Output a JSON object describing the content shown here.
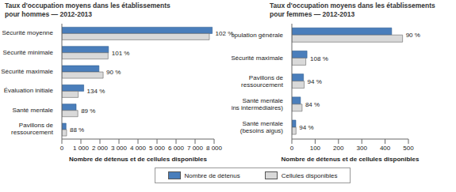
{
  "chart_data": [
    {
      "type": "bar",
      "orientation": "horizontal",
      "title": "Taux d'occupation moyens dans les établissements pour hommes — 2012-2013",
      "x_label": "Nombre de détenus et de cellules disponibles",
      "categories": [
        "Sécurité moyenne",
        "Sécurité minimale",
        "Sécurité maximale",
        "Évaluation initiale",
        "Santé mentale",
        "Pavillons de ressourcement"
      ],
      "series": [
        {
          "name": "Nombre de détenus",
          "color": "#4a7ebb",
          "values": [
            7900,
            2450,
            1950,
            1150,
            750,
            220
          ]
        },
        {
          "name": "Cellules disponibles",
          "color": "#d9d9d9",
          "values": [
            7750,
            2430,
            2170,
            860,
            840,
            250
          ]
        }
      ],
      "annotations": [
        "102 %",
        "101 %",
        "90 %",
        "134 %",
        "89 %",
        "88 %"
      ],
      "xlim": [
        0,
        8000
      ],
      "xticks": [
        0,
        {
          "value": 1000,
          "label": "1 000"
        },
        {
          "value": 2000,
          "label": "2 000"
        },
        {
          "value": 3000,
          "label": "3 000"
        },
        {
          "value": 4000,
          "label": "4 000"
        },
        {
          "value": 5000,
          "label": "5 000"
        },
        {
          "value": 6000,
          "label": "6 000"
        },
        {
          "value": 7000,
          "label": "7 000"
        },
        {
          "value": 8000,
          "label": "8 000"
        }
      ],
      "grid": false,
      "legend": "bottom"
    },
    {
      "type": "bar",
      "orientation": "horizontal",
      "title": "Taux d'occupation moyens dans les établissements pour femmes — 2012-2013",
      "x_label": "Nombre de détenus et de cellules disponibles",
      "categories": [
        "Population générale",
        "Sécurité maximale",
        "Pavillons de ressourcement",
        "Santé mentale (soins intermédiaires)",
        "Santé mentale (besoins aigus)"
      ],
      "series": [
        {
          "name": "Nombre de détenus",
          "color": "#4a7ebb",
          "values": [
            428,
            65,
            50,
            37,
            17
          ]
        },
        {
          "name": "Cellules disponibles",
          "color": "#d9d9d9",
          "values": [
            475,
            60,
            53,
            44,
            18
          ]
        }
      ],
      "annotations": [
        "90 %",
        "108 %",
        "94 %",
        "84 %",
        "94 %"
      ],
      "xlim": [
        0,
        500
      ],
      "xticks": [
        0,
        100,
        200,
        300,
        400,
        500
      ],
      "grid": false,
      "legend": "bottom"
    }
  ]
}
